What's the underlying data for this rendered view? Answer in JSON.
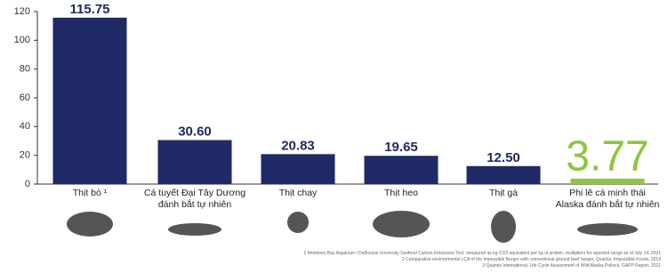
{
  "chart_data": {
    "type": "bar",
    "categories": [
      "Thịt bò ¹",
      "Cá tuyết Đại Tây Dương\nđánh bắt tự nhiên",
      "Thịt chay",
      "Thịt heo",
      "Thịt gà",
      "Phi lê cá minh thái\nAlaska đánh bắt tự nhiên"
    ],
    "values": [
      115.75,
      30.6,
      20.83,
      19.65,
      12.5,
      3.77
    ],
    "value_labels": [
      "115.75",
      "30.60",
      "20.83",
      "19.65",
      "12.50",
      "3.77"
    ],
    "colors": [
      "#1f2a66",
      "#1f2a66",
      "#1f2a66",
      "#1f2a66",
      "#1f2a66",
      "#8dc63f"
    ],
    "ylim": [
      0,
      120
    ],
    "yticks": [
      0,
      20,
      40,
      60,
      80,
      100,
      120
    ],
    "notes": [
      "1 Monterey Bay Aquarium / Dalhousie University Seafood Carbon Emissions Tool, measured as kg CO2 equivalent per kg of protein, multipliers for reported range as of July 14, 2021",
      "2 Comparative environmental LCA of the Impossible Burger with conventional ground beef burger, Quantis, Impossible Foods, 2019",
      "3 Quantis International, Life Cycle Assessment of Wild Alaska Pollock, GAPP Report, 2021"
    ]
  }
}
